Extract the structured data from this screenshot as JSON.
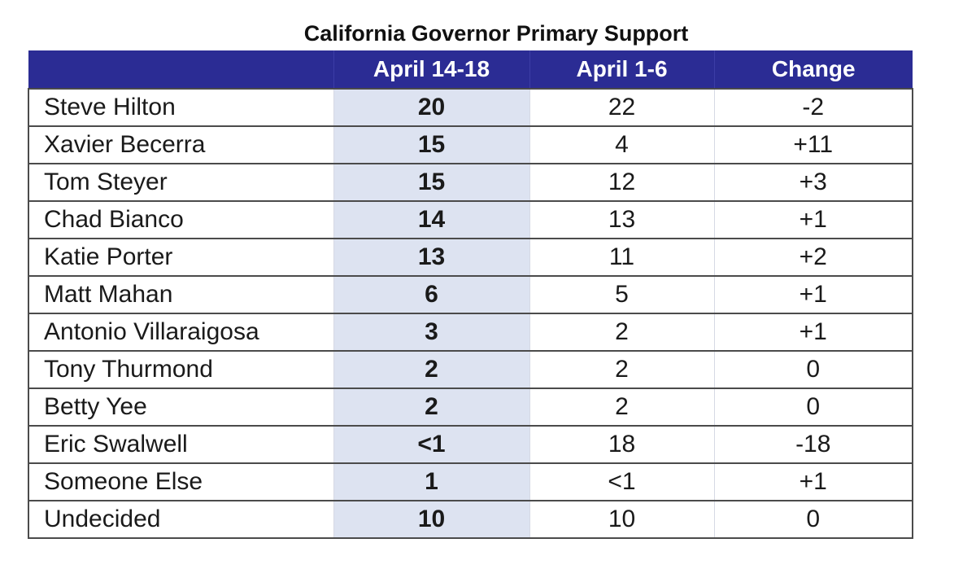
{
  "chart_data": {
    "type": "table",
    "title": "California Governor Primary Support",
    "columns": [
      "",
      "April 14-18",
      "April 1-6",
      "Change"
    ],
    "rows": [
      {
        "candidate": "Steve Hilton",
        "april_14_18": "20",
        "april_1_6": "22",
        "change": "-2"
      },
      {
        "candidate": "Xavier Becerra",
        "april_14_18": "15",
        "april_1_6": "4",
        "change": "+11"
      },
      {
        "candidate": "Tom Steyer",
        "april_14_18": "15",
        "april_1_6": "12",
        "change": "+3"
      },
      {
        "candidate": "Chad Bianco",
        "april_14_18": "14",
        "april_1_6": "13",
        "change": "+1"
      },
      {
        "candidate": "Katie Porter",
        "april_14_18": "13",
        "april_1_6": "11",
        "change": "+2"
      },
      {
        "candidate": "Matt Mahan",
        "april_14_18": "6",
        "april_1_6": "5",
        "change": "+1"
      },
      {
        "candidate": "Antonio Villaraigosa",
        "april_14_18": "3",
        "april_1_6": "2",
        "change": "+1"
      },
      {
        "candidate": "Tony Thurmond",
        "april_14_18": "2",
        "april_1_6": "2",
        "change": "0"
      },
      {
        "candidate": "Betty Yee",
        "april_14_18": "2",
        "april_1_6": "2",
        "change": "0"
      },
      {
        "candidate": "Eric Swalwell",
        "april_14_18": "<1",
        "april_1_6": "18",
        "change": "-18"
      },
      {
        "candidate": "Someone Else",
        "april_14_18": "1",
        "april_1_6": "<1",
        "change": "+1"
      },
      {
        "candidate": "Undecided",
        "april_14_18": "10",
        "april_1_6": "10",
        "change": "0"
      }
    ]
  },
  "colors": {
    "header_background": "#2b2c94",
    "header_text": "#ffffff",
    "highlight_column": "#dde3f1",
    "grid_line": "#4b4b4b"
  }
}
